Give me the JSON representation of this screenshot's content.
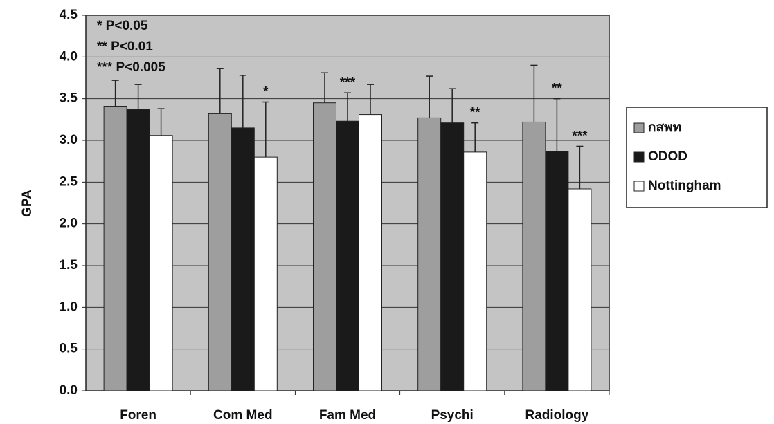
{
  "chart_data": {
    "type": "bar",
    "categories": [
      "Foren",
      "Com Med",
      "Fam Med",
      "Psychi",
      "Radiology"
    ],
    "y_label": "GPA",
    "notes": [
      "* P<0.05",
      "** P<0.01",
      "*** P<0.005"
    ],
    "series": [
      {
        "name": "กสพท",
        "color": "#9e9e9e",
        "values": [
          3.41,
          3.32,
          3.45,
          3.27,
          3.22
        ],
        "errors": [
          0.31,
          0.54,
          0.36,
          0.5,
          0.68
        ],
        "annotations": [
          null,
          null,
          null,
          null,
          null
        ]
      },
      {
        "name": "ODOD",
        "color": "#1a1a1a",
        "values": [
          3.37,
          3.15,
          3.23,
          3.21,
          2.87
        ],
        "errors": [
          0.3,
          0.63,
          0.34,
          0.41,
          0.63
        ],
        "annotations": [
          null,
          null,
          "***",
          null,
          "**"
        ]
      },
      {
        "name": "Nottingham",
        "color": "#ffffff",
        "values": [
          3.06,
          2.8,
          3.31,
          2.86,
          2.42
        ],
        "errors": [
          0.32,
          0.66,
          0.36,
          0.35,
          0.51
        ],
        "annotations": [
          null,
          "*",
          null,
          "**",
          "***"
        ]
      }
    ],
    "ylim": [
      0,
      4.5
    ],
    "yticks": [
      {
        "value": 0,
        "label": "0.0"
      },
      {
        "value": 0.5,
        "label": "0.5"
      },
      {
        "value": 1,
        "label": "1.0"
      },
      {
        "value": 1.5,
        "label": "1.5"
      },
      {
        "value": 2,
        "label": "2.0"
      },
      {
        "value": 2.5,
        "label": "2.5"
      },
      {
        "value": 3,
        "label": "3.0"
      },
      {
        "value": 3.5,
        "label": "3.5"
      },
      {
        "value": 4,
        "label": "4.0"
      },
      {
        "value": 4.5,
        "label": "4.5"
      }
    ],
    "grid": true
  }
}
